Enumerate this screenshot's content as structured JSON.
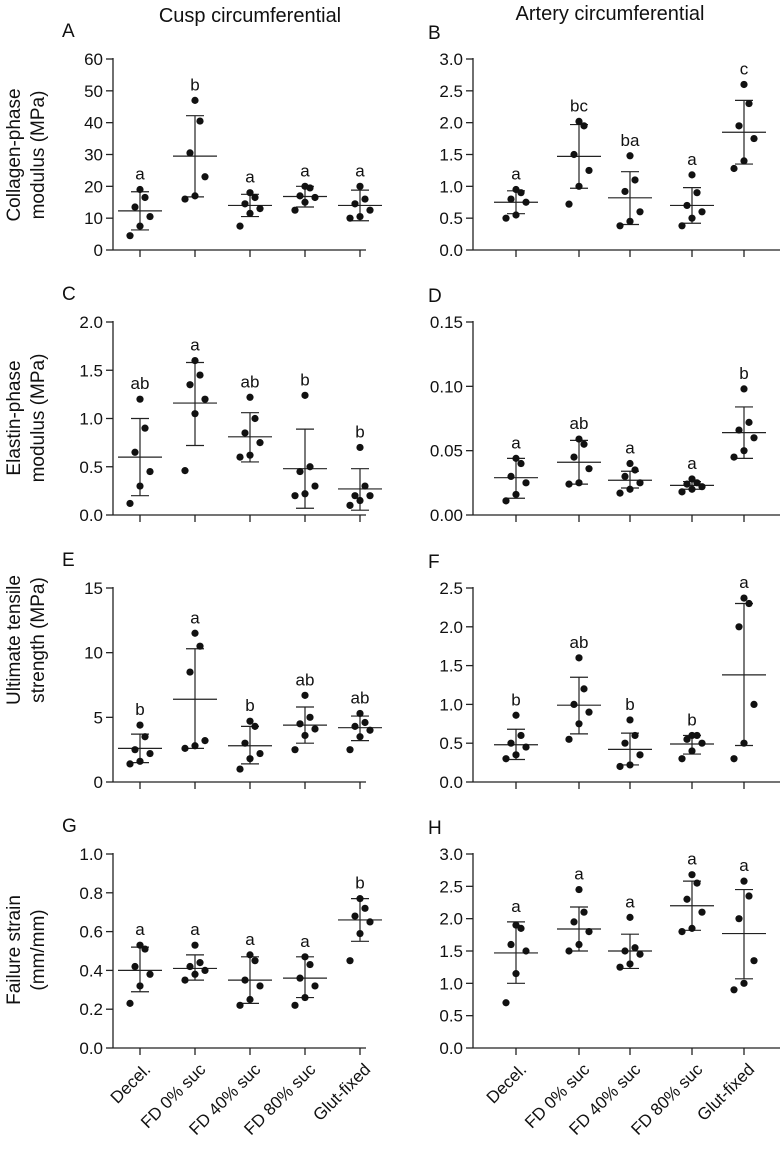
{
  "column_titles": [
    "Cusp circumferential",
    "Artery circumferential"
  ],
  "row_ylabels": [
    [
      "Collagen-phase",
      "modulus (MPa)"
    ],
    [
      "Elastin-phase",
      "modulus (MPa)"
    ],
    [
      "Ultimate tensile",
      "strength (MPa)"
    ],
    [
      "Failure strain",
      "(mm/mm)"
    ]
  ],
  "x_categories": [
    "Decel.",
    "FD 0% suc",
    "FD 40% suc",
    "FD 80% suc",
    "Glut-fixed"
  ],
  "chart_data": [
    {
      "panel": "A",
      "type": "scatter",
      "title": "Cusp circumferential",
      "ylabel": "Collagen-phase modulus (MPa)",
      "ylim": [
        0,
        60
      ],
      "yticks": [
        0,
        10,
        20,
        30,
        40,
        50,
        60
      ],
      "categories": [
        "Decel.",
        "FD 0% suc",
        "FD 40% suc",
        "FD 80% suc",
        "Glut-fixed"
      ],
      "groups": [
        {
          "points": [
            4.5,
            7.5,
            10.5,
            13.5,
            16.5,
            19
          ],
          "mean": 12.3,
          "sd_low": 6.3,
          "sd_high": 18.3,
          "letter": "a"
        },
        {
          "points": [
            16,
            17,
            23,
            30.5,
            40.5,
            47
          ],
          "mean": 29.5,
          "sd_low": 16.7,
          "sd_high": 42.2,
          "letter": "b"
        },
        {
          "points": [
            7.5,
            11.5,
            13,
            14.5,
            16.5,
            18
          ],
          "mean": 14,
          "sd_low": 10.5,
          "sd_high": 17.5,
          "letter": "a"
        },
        {
          "points": [
            12.5,
            15,
            16.5,
            17,
            19.5,
            20
          ],
          "mean": 16.8,
          "sd_low": 13.5,
          "sd_high": 20,
          "letter": "a"
        },
        {
          "points": [
            10,
            10.5,
            12.5,
            14.5,
            16,
            20
          ],
          "mean": 14,
          "sd_low": 9.2,
          "sd_high": 18.8,
          "letter": "a"
        }
      ]
    },
    {
      "panel": "B",
      "type": "scatter",
      "title": "Artery circumferential",
      "ylabel": "",
      "ylim": [
        0,
        3
      ],
      "yticks": [
        0.0,
        0.5,
        1.0,
        1.5,
        2.0,
        2.5,
        3.0
      ],
      "categories": [
        "Decel.",
        "FD 0% suc",
        "FD 40% suc",
        "FD 80% suc",
        "Glut-fixed"
      ],
      "groups": [
        {
          "points": [
            0.5,
            0.55,
            0.75,
            0.8,
            0.9,
            0.95
          ],
          "mean": 0.75,
          "sd_low": 0.57,
          "sd_high": 0.93,
          "letter": "a"
        },
        {
          "points": [
            0.72,
            1.0,
            1.25,
            1.5,
            1.95,
            2.02
          ],
          "mean": 1.47,
          "sd_low": 0.97,
          "sd_high": 1.97,
          "letter": "bc"
        },
        {
          "points": [
            0.38,
            0.45,
            0.6,
            0.92,
            1.1,
            1.48
          ],
          "mean": 0.82,
          "sd_low": 0.4,
          "sd_high": 1.23,
          "letter": "ba"
        },
        {
          "points": [
            0.38,
            0.5,
            0.6,
            0.7,
            0.9,
            1.18
          ],
          "mean": 0.7,
          "sd_low": 0.42,
          "sd_high": 0.98,
          "letter": "a"
        },
        {
          "points": [
            1.28,
            1.4,
            1.75,
            1.95,
            2.3,
            2.6
          ],
          "mean": 1.85,
          "sd_low": 1.35,
          "sd_high": 2.35,
          "letter": "c"
        }
      ]
    },
    {
      "panel": "C",
      "type": "scatter",
      "title": "",
      "ylabel": "Elastin-phase modulus (MPa)",
      "ylim": [
        0,
        2
      ],
      "yticks": [
        0.0,
        0.5,
        1.0,
        1.5,
        2.0
      ],
      "categories": [
        "Decel.",
        "FD 0% suc",
        "FD 40% suc",
        "FD 80% suc",
        "Glut-fixed"
      ],
      "groups": [
        {
          "points": [
            0.12,
            0.3,
            0.45,
            0.65,
            0.9,
            1.2
          ],
          "mean": 0.6,
          "sd_low": 0.2,
          "sd_high": 1.0,
          "letter": "ab"
        },
        {
          "points": [
            0.46,
            1.05,
            1.2,
            1.35,
            1.45,
            1.6
          ],
          "mean": 1.16,
          "sd_low": 0.72,
          "sd_high": 1.58,
          "letter": "a"
        },
        {
          "points": [
            0.6,
            0.62,
            0.75,
            0.85,
            1.0,
            1.22
          ],
          "mean": 0.81,
          "sd_low": 0.55,
          "sd_high": 1.06,
          "letter": "ab"
        },
        {
          "points": [
            0.2,
            0.22,
            0.3,
            0.45,
            0.5,
            1.24
          ],
          "mean": 0.48,
          "sd_low": 0.07,
          "sd_high": 0.89,
          "letter": "b"
        },
        {
          "points": [
            0.1,
            0.15,
            0.2,
            0.2,
            0.3,
            0.7
          ],
          "mean": 0.27,
          "sd_low": 0.05,
          "sd_high": 0.48,
          "letter": "b"
        }
      ]
    },
    {
      "panel": "D",
      "type": "scatter",
      "title": "",
      "ylabel": "",
      "ylim": [
        0,
        0.15
      ],
      "yticks": [
        0.0,
        0.05,
        0.1,
        0.15
      ],
      "categories": [
        "Decel.",
        "FD 0% suc",
        "FD 40% suc",
        "FD 80% suc",
        "Glut-fixed"
      ],
      "groups": [
        {
          "points": [
            0.011,
            0.016,
            0.025,
            0.03,
            0.04,
            0.044
          ],
          "mean": 0.029,
          "sd_low": 0.013,
          "sd_high": 0.044,
          "letter": "a"
        },
        {
          "points": [
            0.024,
            0.025,
            0.036,
            0.045,
            0.055,
            0.059
          ],
          "mean": 0.041,
          "sd_low": 0.024,
          "sd_high": 0.058,
          "letter": "ab"
        },
        {
          "points": [
            0.017,
            0.02,
            0.025,
            0.03,
            0.035,
            0.04
          ],
          "mean": 0.027,
          "sd_low": 0.021,
          "sd_high": 0.034,
          "letter": "a"
        },
        {
          "points": [
            0.018,
            0.02,
            0.022,
            0.024,
            0.025,
            0.028
          ],
          "mean": 0.023,
          "sd_low": 0.02,
          "sd_high": 0.026,
          "letter": "a"
        },
        {
          "points": [
            0.045,
            0.05,
            0.06,
            0.066,
            0.072,
            0.098
          ],
          "mean": 0.064,
          "sd_low": 0.044,
          "sd_high": 0.084,
          "letter": "b"
        }
      ]
    },
    {
      "panel": "E",
      "type": "scatter",
      "title": "",
      "ylabel": "Ultimate tensile strength (MPa)",
      "ylim": [
        0,
        15
      ],
      "yticks": [
        0,
        5,
        10,
        15
      ],
      "categories": [
        "Decel.",
        "FD 0% suc",
        "FD 40% suc",
        "FD 80% suc",
        "Glut-fixed"
      ],
      "groups": [
        {
          "points": [
            1.4,
            1.6,
            2.2,
            2.5,
            3.5,
            4.4
          ],
          "mean": 2.6,
          "sd_low": 1.5,
          "sd_high": 3.7,
          "letter": "b"
        },
        {
          "points": [
            2.6,
            2.8,
            3.2,
            8.5,
            10.5,
            11.5
          ],
          "mean": 6.4,
          "sd_low": 2.6,
          "sd_high": 10.3,
          "letter": "a"
        },
        {
          "points": [
            1.0,
            1.8,
            2.2,
            3.0,
            4.3,
            4.7
          ],
          "mean": 2.8,
          "sd_low": 1.4,
          "sd_high": 4.3,
          "letter": "b"
        },
        {
          "points": [
            2.5,
            3.6,
            4.1,
            4.5,
            5.0,
            6.7
          ],
          "mean": 4.4,
          "sd_low": 3.0,
          "sd_high": 5.8,
          "letter": "ab"
        },
        {
          "points": [
            2.5,
            3.5,
            4.0,
            4.3,
            4.6,
            5.3
          ],
          "mean": 4.2,
          "sd_low": 3.2,
          "sd_high": 5.1,
          "letter": "ab"
        }
      ]
    },
    {
      "panel": "F",
      "type": "scatter",
      "title": "",
      "ylabel": "",
      "ylim": [
        0,
        2.5
      ],
      "yticks": [
        0.0,
        0.5,
        1.0,
        1.5,
        2.0,
        2.5
      ],
      "categories": [
        "Decel.",
        "FD 0% suc",
        "FD 40% suc",
        "FD 80% suc",
        "Glut-fixed"
      ],
      "groups": [
        {
          "points": [
            0.3,
            0.35,
            0.45,
            0.5,
            0.6,
            0.86
          ],
          "mean": 0.48,
          "sd_low": 0.29,
          "sd_high": 0.68,
          "letter": "b"
        },
        {
          "points": [
            0.55,
            0.75,
            0.9,
            1.0,
            1.2,
            1.6
          ],
          "mean": 0.99,
          "sd_low": 0.62,
          "sd_high": 1.35,
          "letter": "ab"
        },
        {
          "points": [
            0.2,
            0.22,
            0.35,
            0.5,
            0.6,
            0.8
          ],
          "mean": 0.42,
          "sd_low": 0.22,
          "sd_high": 0.63,
          "letter": "b"
        },
        {
          "points": [
            0.3,
            0.4,
            0.5,
            0.55,
            0.6,
            0.6
          ],
          "mean": 0.49,
          "sd_low": 0.36,
          "sd_high": 0.6,
          "letter": "b"
        },
        {
          "points": [
            0.3,
            0.5,
            1.0,
            2.0,
            2.3,
            2.37
          ],
          "mean": 1.38,
          "sd_low": 0.47,
          "sd_high": 2.3,
          "letter": "a"
        }
      ]
    },
    {
      "panel": "G",
      "type": "scatter",
      "title": "",
      "ylabel": "Failure strain (mm/mm)",
      "ylim": [
        0,
        1
      ],
      "yticks": [
        0.0,
        0.2,
        0.4,
        0.6,
        0.8,
        1.0
      ],
      "categories": [
        "Decel.",
        "FD 0% suc",
        "FD 40% suc",
        "FD 80% suc",
        "Glut-fixed"
      ],
      "groups": [
        {
          "points": [
            0.23,
            0.32,
            0.38,
            0.42,
            0.51,
            0.53
          ],
          "mean": 0.4,
          "sd_low": 0.29,
          "sd_high": 0.52,
          "letter": "a"
        },
        {
          "points": [
            0.35,
            0.38,
            0.4,
            0.42,
            0.44,
            0.53
          ],
          "mean": 0.41,
          "sd_low": 0.35,
          "sd_high": 0.48,
          "letter": "a"
        },
        {
          "points": [
            0.22,
            0.25,
            0.32,
            0.35,
            0.45,
            0.48
          ],
          "mean": 0.35,
          "sd_low": 0.23,
          "sd_high": 0.47,
          "letter": "a"
        },
        {
          "points": [
            0.22,
            0.26,
            0.32,
            0.36,
            0.43,
            0.47
          ],
          "mean": 0.36,
          "sd_low": 0.26,
          "sd_high": 0.47,
          "letter": "a"
        },
        {
          "points": [
            0.45,
            0.59,
            0.65,
            0.68,
            0.72,
            0.77
          ],
          "mean": 0.66,
          "sd_low": 0.55,
          "sd_high": 0.77,
          "letter": "b"
        }
      ]
    },
    {
      "panel": "H",
      "type": "scatter",
      "title": "",
      "ylabel": "",
      "ylim": [
        0,
        3
      ],
      "yticks": [
        0.0,
        0.5,
        1.0,
        1.5,
        2.0,
        2.5,
        3.0
      ],
      "categories": [
        "Decel.",
        "FD 0% suc",
        "FD 40% suc",
        "FD 80% suc",
        "Glut-fixed"
      ],
      "groups": [
        {
          "points": [
            0.7,
            1.15,
            1.5,
            1.6,
            1.85,
            1.9
          ],
          "mean": 1.47,
          "sd_low": 1.0,
          "sd_high": 1.95,
          "letter": "a"
        },
        {
          "points": [
            1.5,
            1.6,
            1.8,
            1.95,
            2.1,
            2.45
          ],
          "mean": 1.84,
          "sd_low": 1.5,
          "sd_high": 2.18,
          "letter": "a"
        },
        {
          "points": [
            1.25,
            1.3,
            1.45,
            1.5,
            1.55,
            2.02
          ],
          "mean": 1.5,
          "sd_low": 1.23,
          "sd_high": 1.76,
          "letter": "a"
        },
        {
          "points": [
            1.8,
            1.85,
            2.1,
            2.3,
            2.55,
            2.68
          ],
          "mean": 2.2,
          "sd_low": 1.82,
          "sd_high": 2.58,
          "letter": "a"
        },
        {
          "points": [
            0.9,
            1.0,
            1.35,
            2.0,
            2.35,
            2.58
          ],
          "mean": 1.77,
          "sd_low": 1.07,
          "sd_high": 2.45,
          "letter": "a"
        }
      ]
    }
  ]
}
